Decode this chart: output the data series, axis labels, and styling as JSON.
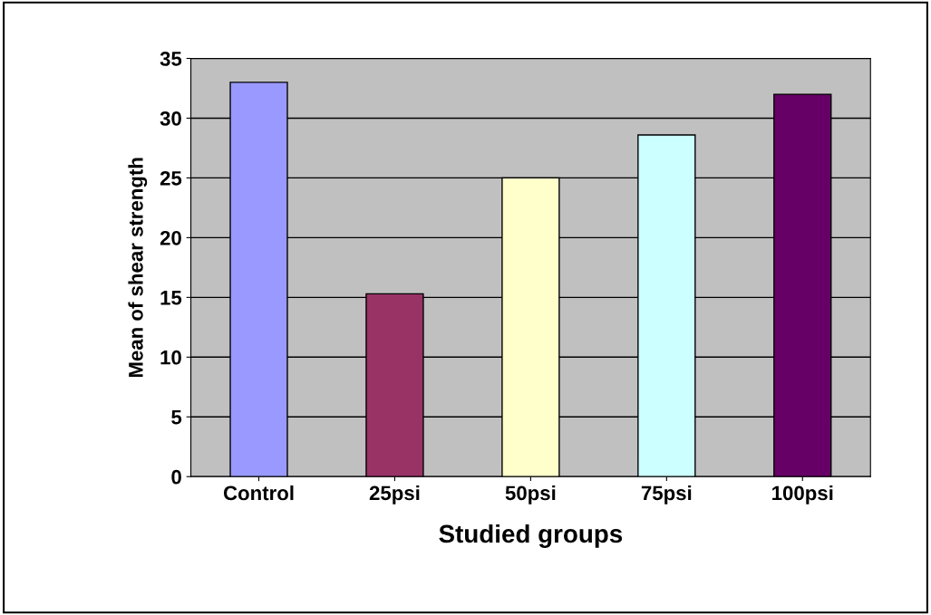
{
  "chart_data": {
    "type": "bar",
    "xlabel": "Studied groups",
    "ylabel": "Mean of shear strength",
    "categories": [
      "Control",
      "25psi",
      "50psi",
      "75psi",
      "100psi"
    ],
    "values": [
      33.0,
      15.3,
      25.0,
      28.6,
      32.0
    ],
    "colors": [
      "#9999ff",
      "#993366",
      "#ffffcc",
      "#ccffff",
      "#660066"
    ],
    "ylim": [
      0,
      35
    ],
    "yticks": [
      0,
      5,
      10,
      15,
      20,
      25,
      30,
      35
    ],
    "grid": "y",
    "legend": false
  }
}
